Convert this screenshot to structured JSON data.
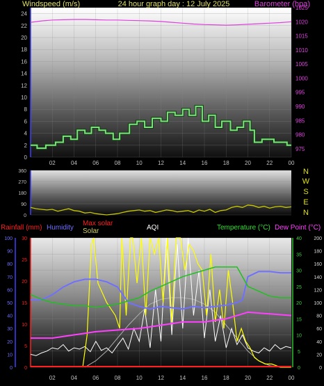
{
  "header": {
    "left_label": "Windspeed (m/s)",
    "center_label": "24 hour graph day : 12 July 2025",
    "right_label": "Barometer (hpa)"
  },
  "colors": {
    "wind": "#7fe07f",
    "wind_edge": "#104010",
    "barometer": "#e040e0",
    "header_text": "#e0e060",
    "dir_letters": "#e0e000",
    "direction_line": "#c8c800",
    "rain": "#ff2020",
    "humidity": "#7070ff",
    "max_solar": "#b0b0b0",
    "solar": "#ffff00",
    "aqi": "#ffffff",
    "temperature": "#20c020",
    "dew_point": "#ff40ff",
    "axis_text": "#c0c0c0",
    "axis_right_temp": "#40d040"
  },
  "chart_data": [
    {
      "type": "line",
      "name": "windspeed-barometer",
      "x_ticks": [
        "02",
        "04",
        "06",
        "08",
        "10",
        "12",
        "14",
        "16",
        "18",
        "20",
        "22",
        "00"
      ],
      "y_left_ticks": [
        "0",
        "2",
        "4",
        "6",
        "8",
        "10",
        "12",
        "14",
        "16",
        "18",
        "20",
        "22",
        "24"
      ],
      "y_left_label": "Windspeed (m/s)",
      "y_left_range": [
        0,
        25
      ],
      "y_right_ticks": [
        "975",
        "980",
        "985",
        "990",
        "995",
        "1000",
        "1005",
        "1010",
        "1015",
        "1020",
        "1025"
      ],
      "y_right_label": "Barometer (hpa)",
      "y_right_range": [
        972,
        1025
      ],
      "x_range_hours": [
        0,
        24
      ],
      "series": [
        {
          "name": "Windspeed",
          "x": [
            0,
            0.6,
            0.6,
            1.4,
            1.4,
            2.3,
            2.3,
            3.0,
            3.0,
            3.7,
            3.7,
            4.3,
            4.3,
            5.0,
            5.0,
            5.6,
            5.6,
            6.3,
            6.3,
            6.9,
            6.9,
            7.6,
            7.6,
            8.2,
            8.2,
            9.1,
            9.1,
            9.8,
            9.8,
            10.5,
            10.5,
            11.2,
            11.2,
            12.0,
            12.0,
            12.6,
            12.6,
            13.3,
            13.3,
            14.0,
            14.0,
            14.6,
            14.6,
            15.2,
            15.2,
            15.8,
            15.8,
            16.4,
            16.4,
            17.0,
            17.0,
            17.6,
            17.6,
            18.4,
            18.4,
            19.0,
            19.0,
            19.6,
            19.6,
            20.2,
            20.2,
            20.6,
            20.6,
            21.3,
            21.3,
            22.4,
            22.4,
            23.6,
            23.6,
            24
          ],
          "values": [
            2,
            2,
            1.5,
            1.5,
            2,
            2,
            2.5,
            2.5,
            3.5,
            3.5,
            3,
            3,
            4.5,
            4.5,
            4,
            4,
            5,
            5,
            4.5,
            4.5,
            4,
            4,
            3,
            3,
            4,
            4,
            5.5,
            5.5,
            6,
            6,
            5,
            5,
            6.5,
            6.5,
            6,
            6,
            7.5,
            7.5,
            7,
            7,
            8,
            8,
            7,
            7,
            8.5,
            8.5,
            6,
            6,
            7,
            7,
            5,
            5,
            6,
            6,
            4.5,
            4.5,
            5,
            5,
            6,
            6,
            4.5,
            4.5,
            2.5,
            2.5,
            3,
            3,
            2.5,
            2.5,
            2,
            2
          ]
        },
        {
          "name": "Barometer",
          "x": [
            0,
            1,
            2,
            3,
            4,
            5,
            6,
            7,
            8,
            9,
            10,
            11,
            12,
            13,
            14,
            15,
            16,
            17,
            18,
            19,
            20,
            21,
            22,
            23,
            24
          ],
          "values": [
            1019.8,
            1020.3,
            1020.6,
            1020.7,
            1020.8,
            1020.8,
            1020.7,
            1020.6,
            1020.6,
            1020.5,
            1020.4,
            1020.3,
            1020.1,
            1019.8,
            1019.5,
            1019.2,
            1019.0,
            1018.9,
            1018.8,
            1018.9,
            1019.1,
            1019.3,
            1019.5,
            1019.7,
            1020.0
          ]
        }
      ]
    },
    {
      "type": "line",
      "name": "wind-direction",
      "y_right_ticks": [
        "N",
        "W",
        "S",
        "E",
        "N"
      ],
      "y_left_ticks": [
        "0",
        "90",
        "180",
        "270",
        "360"
      ],
      "y_range": [
        0,
        360
      ],
      "x_range_hours": [
        0,
        24
      ],
      "series": [
        {
          "name": "Wind direction",
          "x": [
            0,
            0.5,
            1,
            1.5,
            2,
            2.5,
            3,
            3.5,
            4,
            4.5,
            5,
            5.5,
            6,
            6.5,
            7,
            7.5,
            8,
            8.5,
            9,
            9.5,
            10,
            10.5,
            11,
            11.5,
            12,
            12.5,
            13,
            13.5,
            14,
            14.5,
            15,
            15.5,
            16,
            16.5,
            17,
            17.5,
            18,
            18.5,
            19,
            19.5,
            20,
            20.5,
            21,
            21.5,
            22,
            22.5,
            23,
            23.5,
            24
          ],
          "values": [
            60,
            50,
            45,
            40,
            45,
            30,
            40,
            50,
            35,
            30,
            15,
            20,
            10,
            5,
            0,
            5,
            10,
            20,
            30,
            35,
            40,
            30,
            35,
            20,
            30,
            40,
            35,
            25,
            30,
            35,
            20,
            40,
            30,
            45,
            20,
            35,
            40,
            60,
            70,
            60,
            80,
            75,
            60,
            70,
            55,
            65,
            70,
            60,
            65
          ]
        }
      ]
    },
    {
      "type": "line",
      "name": "rain-humidity-solar-aqi-temperature",
      "legend": [
        "Rainfall (mm)",
        "Humidity",
        "Max solar",
        "Solar",
        "AQI",
        "Temperature (°C)",
        "Dew Point (°C)"
      ],
      "x_ticks": [
        "02",
        "04",
        "06",
        "08",
        "10",
        "12",
        "14",
        "16",
        "18",
        "20",
        "22",
        "00"
      ],
      "humidity_ticks": [
        "0",
        "10",
        "20",
        "30",
        "40",
        "50",
        "60",
        "70",
        "80",
        "90",
        "100"
      ],
      "rain_ticks": [
        "0",
        "5",
        "10",
        "15",
        "20",
        "25",
        "30"
      ],
      "temperature_ticks": [
        "0",
        "5",
        "10",
        "15",
        "20",
        "25",
        "30",
        "35",
        "40"
      ],
      "aqi_ticks": [
        "0",
        "20",
        "40",
        "60",
        "80",
        "100",
        "120",
        "140",
        "160",
        "180",
        "200"
      ],
      "temperature_range": [
        0,
        40
      ],
      "humidity_range": [
        0,
        100
      ],
      "rain_range": [
        0,
        30
      ],
      "aqi_range": [
        0,
        200
      ],
      "solar_range_temp_units": [
        0,
        40
      ],
      "x_range_hours": [
        0,
        24
      ],
      "series": [
        {
          "name": "Humidity",
          "x": [
            0,
            1,
            2,
            3,
            4,
            5,
            6,
            7,
            8,
            9,
            10,
            11,
            12,
            13,
            14,
            15,
            16,
            17,
            18,
            19,
            19.5,
            20,
            21,
            22,
            23,
            24
          ],
          "values": [
            52,
            52,
            56,
            62,
            66,
            68,
            68,
            66,
            62,
            50,
            47,
            45,
            47,
            46,
            45,
            47,
            46,
            47,
            48,
            50,
            52,
            70,
            74,
            74,
            73,
            73
          ]
        },
        {
          "name": "Temperature",
          "x": [
            0,
            1,
            2,
            3,
            4,
            5,
            6,
            7,
            8,
            9,
            10,
            11,
            12,
            13,
            14,
            15,
            16,
            17,
            18,
            19,
            20,
            21,
            22,
            23,
            24
          ],
          "values": [
            22.5,
            21,
            20,
            19.5,
            19,
            19,
            18.5,
            19,
            19.5,
            20.5,
            21.5,
            23.5,
            25,
            26.5,
            28,
            29,
            30,
            31,
            31,
            31,
            25,
            23.5,
            22,
            21.5,
            21.5
          ]
        },
        {
          "name": "Dew Point",
          "x": [
            0,
            2,
            4,
            6,
            8,
            10,
            12,
            14,
            16,
            18,
            19.5,
            20,
            22,
            24
          ],
          "values": [
            9,
            9,
            10,
            11,
            11.5,
            12,
            13,
            14,
            14,
            15,
            16.5,
            17,
            16.5,
            16
          ]
        },
        {
          "name": "Max solar",
          "x": [
            5,
            6,
            7,
            8,
            9,
            10,
            11,
            12,
            13,
            14,
            15,
            16,
            17,
            18,
            19,
            20,
            21,
            22,
            23
          ],
          "values": [
            0,
            2,
            5,
            9,
            13,
            16.5,
            19.5,
            21,
            21.5,
            21.5,
            21,
            19.5,
            17,
            13,
            9,
            5,
            2,
            0.5,
            0
          ]
        },
        {
          "name": "Solar",
          "x": [
            4.8,
            5.2,
            5.6,
            5.8,
            6.2,
            7.0,
            7.8,
            8.2,
            8.4,
            8.8,
            9.2,
            9.4,
            9.8,
            10.2,
            10.6,
            11.0,
            11.4,
            11.8,
            12.2,
            12.6,
            13.0,
            13.4,
            13.8,
            14.2,
            14.6,
            15.0,
            15.4,
            15.8,
            16.2,
            16.6,
            17.0,
            17.4,
            17.8,
            18.2,
            18.6,
            19.0,
            19.4,
            19.8,
            20.2,
            20.6,
            21.0,
            21.6,
            22.2,
            23.0,
            24
          ],
          "values": [
            0,
            10,
            38,
            40,
            26,
            20,
            16,
            12,
            40,
            16,
            40,
            40,
            26,
            40,
            16,
            40,
            35,
            40,
            20,
            40,
            14,
            40,
            40,
            30,
            38,
            36,
            32,
            30,
            16,
            35,
            14,
            24,
            12,
            30,
            20,
            8,
            12,
            8,
            6,
            3,
            2,
            1,
            1,
            0,
            0
          ]
        },
        {
          "name": "Rainfall",
          "x": [
            0,
            24
          ],
          "values": [
            0,
            0
          ]
        },
        {
          "name": "AQI",
          "x": [
            0,
            0.5,
            1,
            1.5,
            2,
            2.5,
            3,
            3.5,
            4,
            4.5,
            5,
            5.5,
            6,
            6.5,
            7,
            7.5,
            8,
            8.5,
            9,
            9.5,
            10,
            10.5,
            11,
            11.5,
            12,
            12.5,
            13,
            13.5,
            14,
            14.5,
            15,
            15.5,
            16,
            16.5,
            17,
            17.5,
            18,
            18.5,
            19,
            19.5,
            20,
            20.5,
            21,
            21.5,
            22,
            22.5,
            23,
            23.5,
            24
          ],
          "values": [
            20,
            18,
            22,
            25,
            30,
            28,
            35,
            25,
            30,
            28,
            32,
            24,
            40,
            26,
            30,
            22,
            34,
            45,
            28,
            60,
            40,
            90,
            30,
            120,
            40,
            200,
            50,
            190,
            60,
            200,
            80,
            150,
            45,
            120,
            40,
            80,
            30,
            60,
            35,
            50,
            30,
            25,
            22,
            30,
            25,
            35,
            28,
            32,
            30
          ]
        }
      ]
    }
  ]
}
